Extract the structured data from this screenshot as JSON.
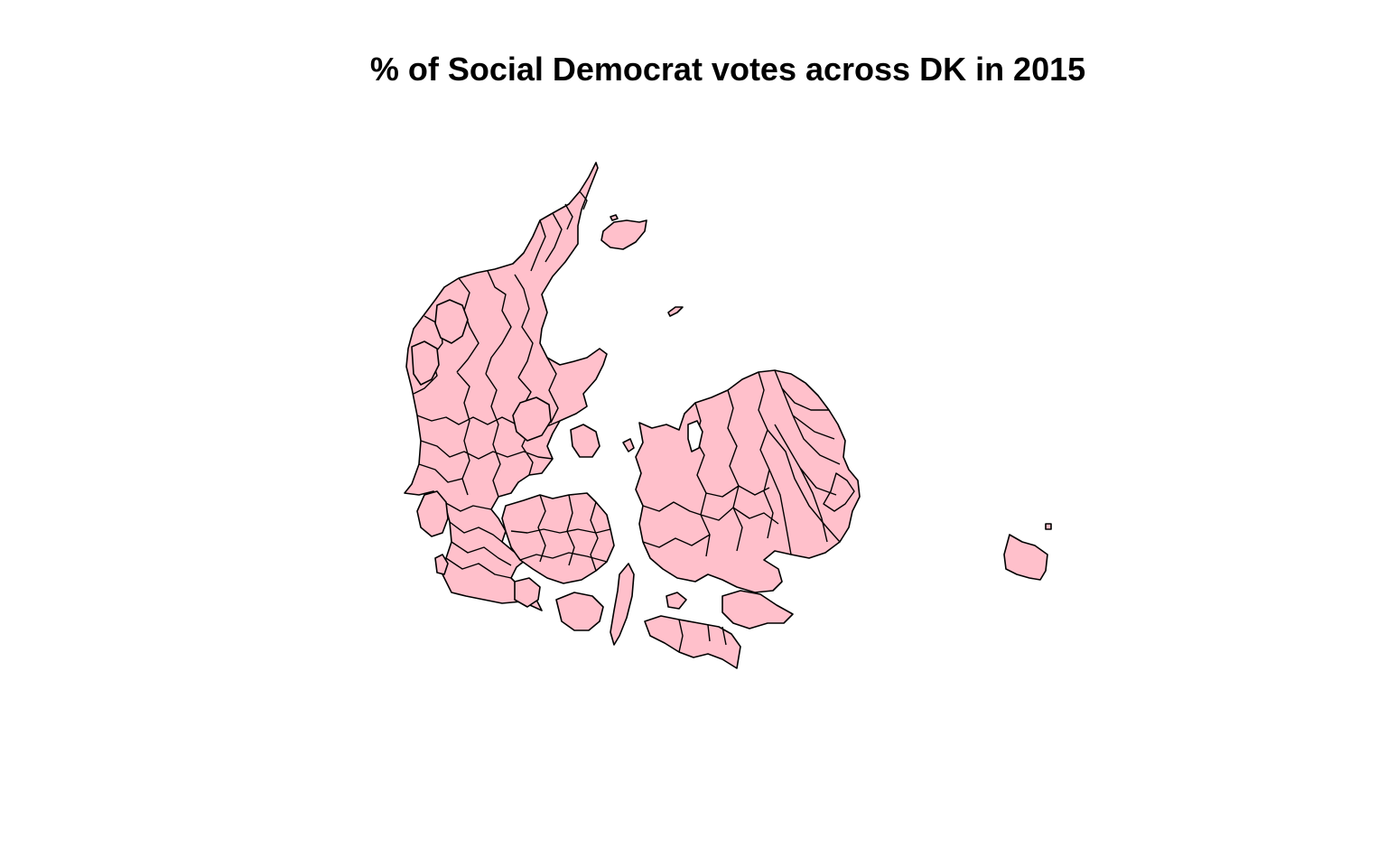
{
  "title": "% of Social Democrat votes across DK in 2015",
  "map": {
    "fill_color": "#FFC0CB",
    "stroke_color": "#000000",
    "background": "#FFFFFF",
    "legend": null
  }
}
